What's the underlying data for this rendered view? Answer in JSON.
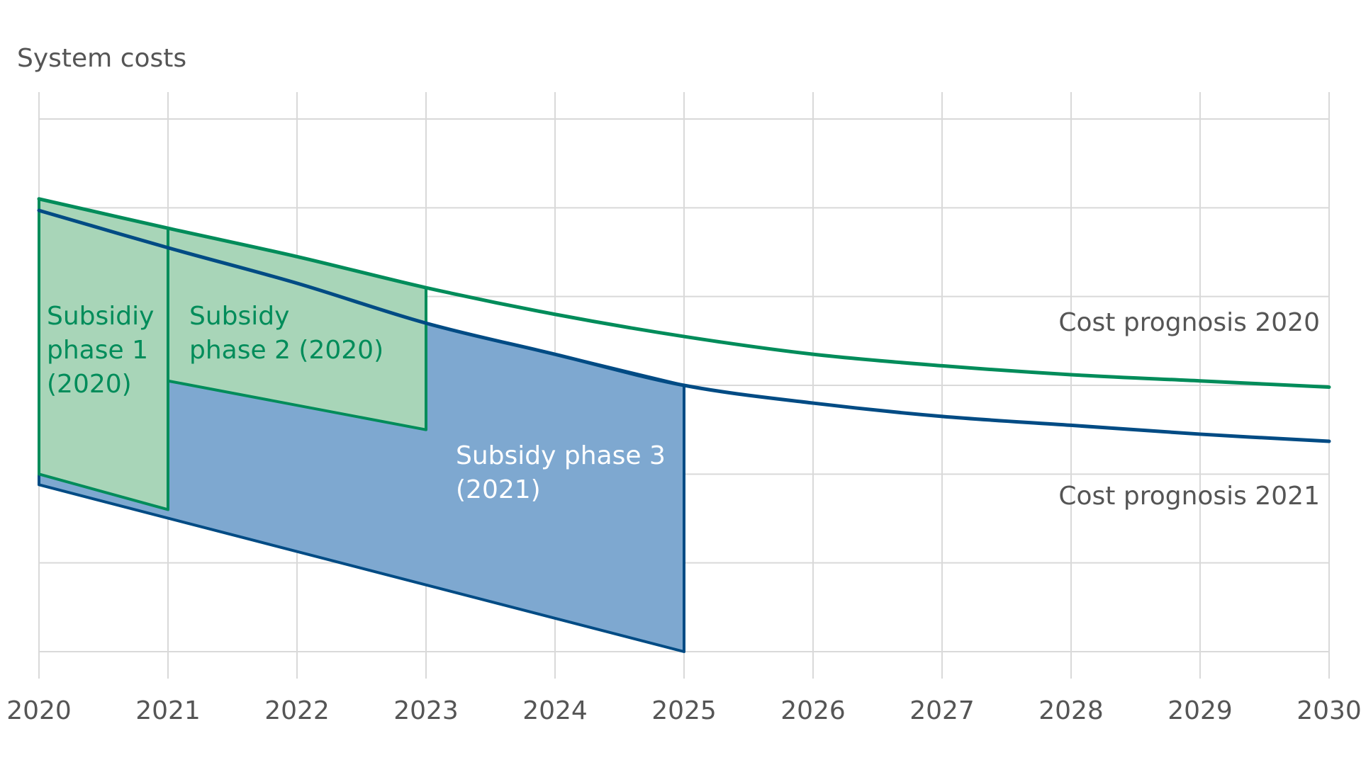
{
  "chart_data": {
    "type": "area",
    "title": "",
    "xlabel": "",
    "ylabel": "System costs",
    "x_ticks": [
      "2020",
      "2021",
      "2022",
      "2023",
      "2024",
      "2025",
      "2026",
      "2027",
      "2028",
      "2029",
      "2030"
    ],
    "xlim": [
      2020,
      2030
    ],
    "ylim": [
      0,
      6
    ],
    "y_tick_labels_shown": false,
    "grid": true,
    "series": [
      {
        "name": "Cost prognosis 2020",
        "color": "#008c5a",
        "x": [
          2020,
          2021,
          2022,
          2023,
          2024,
          2025,
          2026,
          2027,
          2028,
          2029,
          2030
        ],
        "y": [
          5.1,
          4.77,
          4.45,
          4.1,
          3.8,
          3.55,
          3.35,
          3.22,
          3.12,
          3.05,
          2.98
        ]
      },
      {
        "name": "Cost prognosis 2021",
        "color": "#004b84",
        "x": [
          2020,
          2021,
          2022,
          2023,
          2024,
          2025,
          2026,
          2027,
          2028,
          2029,
          2030
        ],
        "y": [
          4.97,
          4.55,
          4.15,
          3.7,
          3.35,
          3.0,
          2.8,
          2.65,
          2.55,
          2.45,
          2.37
        ]
      }
    ],
    "regions": [
      {
        "label": "Subsidiy phase 1 (2020)",
        "label_lines": [
          "Subsidiy",
          "phase 1",
          "(2020)"
        ],
        "x_range": [
          2020,
          2021
        ],
        "upper": [
          [
            2020,
            5.1
          ],
          [
            2021,
            4.77
          ]
        ],
        "lower": [
          [
            2020,
            2.0
          ],
          [
            2021,
            1.6
          ]
        ],
        "fill": "#a8d5b8",
        "stroke": "#008c5a",
        "text_color": "#008c5a"
      },
      {
        "label": "Subsidy phase 2 (2020)",
        "label_lines": [
          "Subsidy",
          "phase 2 (2020)"
        ],
        "x_range": [
          2021,
          2023
        ],
        "upper": [
          [
            2021,
            4.77
          ],
          [
            2022,
            4.45
          ],
          [
            2023,
            4.1
          ]
        ],
        "lower": [
          [
            2021,
            3.05
          ],
          [
            2023,
            2.5
          ]
        ],
        "fill": "#a8d5b8",
        "stroke": "#008c5a",
        "text_color": "#008c5a"
      },
      {
        "label": "Subsidy phase 3 (2021)",
        "label_lines": [
          "Subsidy phase 3",
          "(2021)"
        ],
        "x_range": [
          2020,
          2025
        ],
        "upper": [
          [
            2020,
            4.97
          ],
          [
            2021,
            4.55
          ],
          [
            2022,
            4.15
          ],
          [
            2023,
            3.7
          ],
          [
            2024,
            3.35
          ],
          [
            2025,
            3.0
          ]
        ],
        "lower": [
          [
            2020,
            1.88
          ],
          [
            2025,
            0.0
          ]
        ],
        "fill": "#7ea8d0",
        "stroke": "#004b84",
        "text_color": "#ffffff"
      }
    ],
    "annotations": [
      {
        "text": "Cost prognosis 2020",
        "color": "#555555"
      },
      {
        "text": "Cost prognosis 2021",
        "color": "#555555"
      }
    ]
  }
}
